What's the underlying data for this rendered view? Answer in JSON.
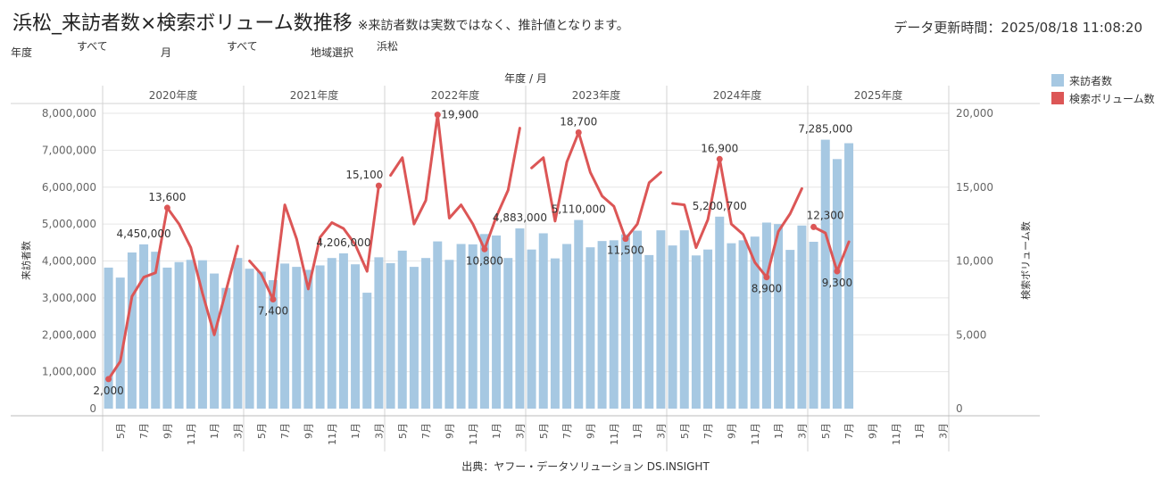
{
  "header": {
    "title": "浜松_来訪者数×検索ボリューム数推移",
    "note": "※来訪者数は実数ではなく、推計値となります。",
    "updated": "データ更新時間：2025/08/18 11:08:20"
  },
  "filters": {
    "year_label": "年度",
    "year_value": "すべて",
    "month_label": "月",
    "month_value": "すべて",
    "region_label": "地域選択",
    "region_value": "浜松"
  },
  "colors": {
    "bars": "#a6c8e2",
    "line": "#dc5656",
    "grid": "#e6e6e6",
    "divider": "#d3d3d3",
    "text": "#333333"
  },
  "legend": {
    "items": [
      {
        "label": "来訪者数",
        "color": "#a6c8e2"
      },
      {
        "label": "検索ボリューム数",
        "color": "#dc5656"
      }
    ]
  },
  "source": "出典：ヤフー・データソリューション DS.INSIGHT",
  "chart_data": {
    "type": "bar",
    "header_label": "年度 / 月",
    "ylabel": "来訪者数",
    "y2label": "検索ボリューム数",
    "ylim": [
      0,
      8000000
    ],
    "yticks": [
      "0",
      "1,000,000",
      "2,000,000",
      "3,000,000",
      "4,000,000",
      "5,000,000",
      "6,000,000",
      "7,000,000",
      "8,000,000"
    ],
    "y2lim": [
      0,
      20000
    ],
    "y2ticks": [
      "0",
      "5,000",
      "10,000",
      "15,000",
      "20,000"
    ],
    "fiscal_years": [
      "2020年度",
      "2021年度",
      "2022年度",
      "2023年度",
      "2024年度",
      "2025年度"
    ],
    "month_tick_labels": [
      "",
      "5月",
      "",
      "7月",
      "",
      "9月",
      "",
      "11月",
      "",
      "1月",
      "",
      "3月"
    ],
    "series": [
      {
        "name": "来訪者数",
        "axis": "left",
        "values": [
          [
            3820000,
            3550000,
            4230000,
            4450000,
            4250000,
            3820000,
            3970000,
            4030000,
            4020000,
            3660000,
            3270000,
            4080000
          ],
          [
            3790000,
            3710000,
            3480000,
            3930000,
            3840000,
            3760000,
            3880000,
            4080000,
            4206000,
            3910000,
            3140000,
            4100000
          ],
          [
            3940000,
            4280000,
            3840000,
            4080000,
            4530000,
            4030000,
            4460000,
            4450000,
            4730000,
            4690000,
            4080000,
            4883000
          ],
          [
            4310000,
            4750000,
            4070000,
            4460000,
            5110000,
            4370000,
            4540000,
            4560000,
            4720000,
            4820000,
            4160000,
            4830000
          ],
          [
            4420000,
            4830000,
            4150000,
            4310000,
            5200700,
            4480000,
            4560000,
            4660000,
            5040000,
            5000000,
            4300000,
            4960000
          ],
          [
            4520000,
            7285000,
            6760000,
            7190000,
            null,
            null,
            null,
            null,
            null,
            null,
            null,
            null
          ]
        ]
      },
      {
        "name": "検索ボリューム数",
        "axis": "right",
        "values": [
          [
            2000,
            3200,
            7600,
            8900,
            9200,
            13600,
            12500,
            10900,
            7800,
            5000,
            8000,
            11000
          ],
          [
            10000,
            9100,
            7400,
            13800,
            11500,
            8100,
            11600,
            12600,
            12200,
            11100,
            9300,
            15100
          ],
          [
            15800,
            17000,
            12500,
            14100,
            19900,
            12900,
            13800,
            12500,
            10800,
            13000,
            14800,
            19000
          ],
          [
            16300,
            17000,
            12700,
            16700,
            18700,
            16000,
            14400,
            13700,
            11500,
            12500,
            15300,
            16000
          ],
          [
            13900,
            13800,
            10900,
            12800,
            16900,
            12500,
            11800,
            9900,
            8900,
            12000,
            13200,
            14900
          ],
          [
            12300,
            11900,
            9300,
            11300,
            null,
            null,
            null,
            null,
            null,
            null,
            null,
            null
          ]
        ]
      }
    ],
    "bar_labels": [
      {
        "text": "4,450,000",
        "fy": 0,
        "m": 3
      },
      {
        "text": "4,206,000",
        "fy": 1,
        "m": 8
      },
      {
        "text": "4,883,000",
        "fy": 2,
        "m": 11
      },
      {
        "text": "5,110,000",
        "fy": 3,
        "m": 4
      },
      {
        "text": "5,200,700",
        "fy": 4,
        "m": 4
      },
      {
        "text": "7,285,000",
        "fy": 5,
        "m": 1
      }
    ],
    "line_labels": [
      {
        "text": "2,000",
        "fy": 0,
        "m": 0,
        "pos": "below"
      },
      {
        "text": "13,600",
        "fy": 0,
        "m": 5,
        "pos": "above"
      },
      {
        "text": "7,400",
        "fy": 1,
        "m": 2,
        "pos": "below"
      },
      {
        "text": "15,100",
        "fy": 1,
        "m": 11,
        "pos": "above-left"
      },
      {
        "text": "19,900",
        "fy": 2,
        "m": 4,
        "pos": "right"
      },
      {
        "text": "10,800",
        "fy": 2,
        "m": 8,
        "pos": "below"
      },
      {
        "text": "18,700",
        "fy": 3,
        "m": 4,
        "pos": "above"
      },
      {
        "text": "11,500",
        "fy": 3,
        "m": 8,
        "pos": "below"
      },
      {
        "text": "16,900",
        "fy": 4,
        "m": 4,
        "pos": "above"
      },
      {
        "text": "8,900",
        "fy": 4,
        "m": 8,
        "pos": "below"
      },
      {
        "text": "12,300",
        "fy": 5,
        "m": 0,
        "pos": "above-right"
      },
      {
        "text": "9,300",
        "fy": 5,
        "m": 2,
        "pos": "below"
      }
    ]
  }
}
